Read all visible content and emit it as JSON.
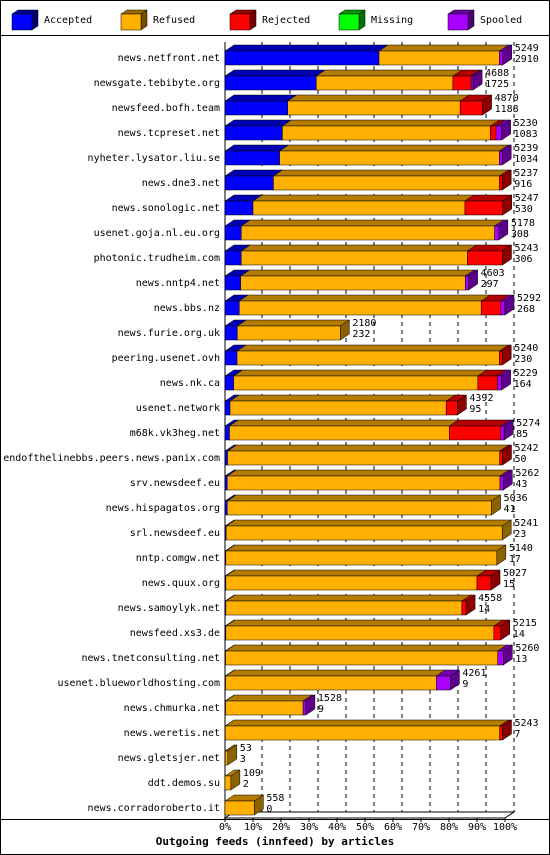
{
  "chart_data": {
    "type": "stacked-bar-3d",
    "orientation": "horizontal",
    "title": "Outgoing feeds (innfeed) by articles",
    "categories": [
      "news.netfront.net",
      "newsgate.tebibyte.org",
      "newsfeed.bofh.team",
      "news.tcpreset.net",
      "nyheter.lysator.liu.se",
      "news.dne3.net",
      "news.sonologic.net",
      "usenet.goja.nl.eu.org",
      "photonic.trudheim.com",
      "news.nntp4.net",
      "news.bbs.nz",
      "news.furie.org.uk",
      "peering.usenet.ovh",
      "news.nk.ca",
      "usenet.network",
      "m68k.vk3heg.net",
      "endofthelinebbs.peers.news.panix.com",
      "srv.newsdeef.eu",
      "news.hispagatos.org",
      "srl.newsdeef.eu",
      "nntp.comgw.net",
      "news.quux.org",
      "news.samoylyk.net",
      "newsfeed.xs3.de",
      "news.tnetconsulting.net",
      "usenet.blueworldhosting.com",
      "news.chmurka.net",
      "news.weretis.net",
      "news.gletsjer.net",
      "ddt.demos.su",
      "news.corradoroberto.it"
    ],
    "series": [
      {
        "name": "Accepted",
        "color": "#0000ff",
        "values": [
          55.0,
          32.6,
          22.4,
          20.5,
          19.5,
          17.3,
          10.0,
          5.8,
          5.8,
          5.6,
          5.1,
          4.4,
          4.3,
          3.1,
          1.8,
          1.6,
          0.9,
          0.8,
          0.8,
          0.4,
          0.3,
          0.3,
          0.3,
          0.3,
          0.2,
          0.2,
          0.2,
          0.1,
          0.1,
          0,
          0
        ]
      },
      {
        "name": "Refused",
        "color": "#ffb000",
        "values": [
          43.0,
          48.8,
          61.6,
          74.3,
          78.5,
          80.7,
          75.7,
          90.5,
          80.8,
          80.2,
          86.4,
          36.8,
          93.7,
          87.2,
          77.2,
          78.5,
          97.2,
          97.4,
          94.4,
          98.6,
          96.8,
          89.7,
          84.3,
          95.7,
          97.2,
          75.3,
          27.7,
          98.0,
          0.9,
          2.1,
          10.5
        ]
      },
      {
        "name": "Rejected",
        "color": "#ff0000",
        "values": [
          0,
          6.5,
          8.0,
          2.0,
          0,
          1.0,
          13.5,
          0,
          12.5,
          0,
          7.0,
          0,
          1.0,
          7.0,
          4.0,
          18.4,
          1.0,
          0,
          0,
          0,
          0,
          5.0,
          1.5,
          2.5,
          0,
          0,
          0,
          1.0,
          0,
          0,
          0
        ]
      },
      {
        "name": "Missing",
        "color": "#00ff00",
        "values": [
          0,
          0,
          0,
          0,
          0,
          0,
          0,
          0,
          0,
          0,
          0,
          0,
          0,
          0,
          0,
          0,
          0,
          0,
          0,
          0,
          0,
          0,
          0,
          0,
          0,
          0,
          0,
          0,
          0,
          0,
          0
        ]
      },
      {
        "name": "Spooled",
        "color": "#aa00ff",
        "values": [
          1.2,
          0.7,
          0,
          2.0,
          1.0,
          0,
          0,
          1.5,
          0,
          1.2,
          1.5,
          0,
          0,
          1.5,
          0,
          1.2,
          0,
          1.2,
          0,
          0,
          0,
          0,
          0,
          0,
          2.0,
          5.0,
          1.0,
          0,
          0,
          0,
          0
        ]
      }
    ],
    "offered": [
      5249,
      4688,
      4870,
      5230,
      5239,
      5237,
      5247,
      5178,
      5243,
      4603,
      5292,
      2180,
      5240,
      5229,
      4392,
      5274,
      5242,
      5262,
      5036,
      5241,
      5140,
      5027,
      4558,
      5215,
      5260,
      4261,
      1528,
      5243,
      53,
      109,
      558
    ],
    "accepted": [
      2910,
      1725,
      1188,
      1083,
      1034,
      916,
      530,
      308,
      306,
      297,
      268,
      232,
      230,
      164,
      95,
      85,
      50,
      43,
      41,
      23,
      17,
      15,
      14,
      14,
      13,
      9,
      9,
      7,
      3,
      2,
      0
    ],
    "xlim": [
      0,
      100
    ],
    "xticks": [
      {
        "value": 0,
        "label": "0%"
      },
      {
        "value": 10,
        "label": "10%"
      },
      {
        "value": 20,
        "label": "20%"
      },
      {
        "value": 30,
        "label": "30%"
      },
      {
        "value": 40,
        "label": "40%"
      },
      {
        "value": 50,
        "label": "50%"
      },
      {
        "value": 60,
        "label": "60%"
      },
      {
        "value": 70,
        "label": "70%"
      },
      {
        "value": 80,
        "label": "80%"
      },
      {
        "value": 90,
        "label": "90%"
      },
      {
        "value": 100,
        "label": "100%"
      }
    ],
    "grid": true
  }
}
